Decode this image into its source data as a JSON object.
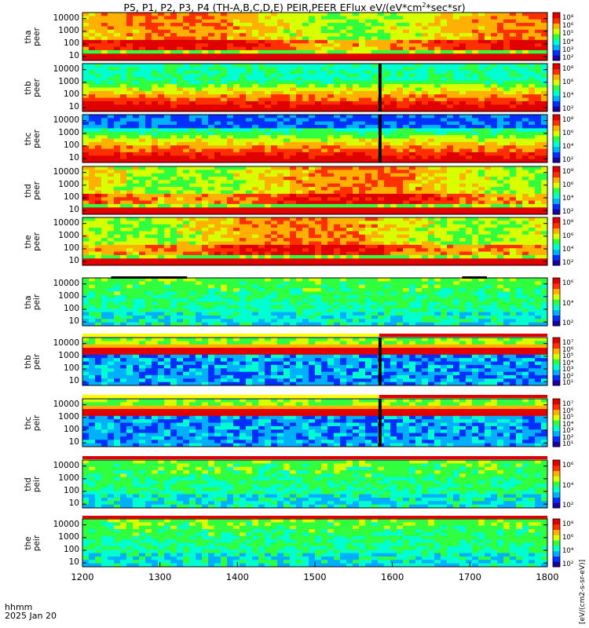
{
  "chart_data": {
    "type": "heatmap",
    "title": "P5, P1, P2, P3, P4 (TH-A,B,C,D,E) PEIR,PEER EFlux eV/(eV*cm",
    "title_sup": "2",
    "title_end": "*sec*sr)",
    "x_ticks": [
      "1200",
      "1300",
      "1400",
      "1500",
      "1600",
      "1700",
      "1800"
    ],
    "x_range": [
      1200,
      1800
    ],
    "y_ticks": [
      "10",
      "100",
      "1000",
      "10000"
    ],
    "y_range": [
      5,
      30000
    ],
    "y_scale": "log",
    "footer": [
      "hhmm",
      "2025 Jan 20"
    ],
    "colorbar_label": "[eV/(cm2-s-sr-eV)]",
    "colorbar_label_overlap": "eV/(cm²-s-sr-eV)",
    "panels": [
      {
        "name": "tha peer",
        "label1": "tha",
        "label2": "peer",
        "cb_ticks": [
          "10⁸",
          "10⁶",
          "10⁵",
          "10⁴",
          "10³",
          "10²"
        ],
        "base_mean_log": 6.6,
        "ramp_low": 4.0,
        "floor_level_e": 14,
        "gap_start": null,
        "gap_end": null
      },
      {
        "name": "thb peer",
        "label1": "thb",
        "label2": "peer",
        "cb_ticks": [
          "10⁸",
          "10⁶",
          "10⁴",
          "10²"
        ],
        "base_mean_log": 5.0,
        "ramp_low": 3.0,
        "floor_level_e": 0,
        "gap_start": 1582,
        "gap_end": 1586
      },
      {
        "name": "thc peer",
        "label1": "thc",
        "label2": "peer",
        "cb_ticks": [
          "10⁸",
          "10⁶",
          "10⁴",
          "10²"
        ],
        "base_mean_log": 4.5,
        "ramp_low": 1.5,
        "floor_level_e": 0,
        "gap_start": 1582,
        "gap_end": 1586
      },
      {
        "name": "thd peer",
        "label1": "thd",
        "label2": "peer",
        "cb_ticks": [
          "10⁸",
          "10⁶",
          "10⁴",
          "10²"
        ],
        "base_mean_log": 6.4,
        "ramp_low": 4.0,
        "floor_level_e": 13,
        "gap_start": null,
        "gap_end": null
      },
      {
        "name": "the peer",
        "label1": "the",
        "label2": "peer",
        "cb_ticks": [
          "10⁸",
          "10⁶",
          "10⁴",
          "10²"
        ],
        "base_mean_log": 6.6,
        "ramp_low": 4.0,
        "floor_level_e": 12,
        "gap_start": null,
        "gap_end": null
      },
      {
        "name": "tha peir",
        "label1": "tha",
        "label2": "peir",
        "cb_ticks": [
          "10⁶",
          "10⁴",
          "10²"
        ],
        "base_mean_log": 3.8,
        "ramp_low": 1.5,
        "floor_level_e": 0,
        "gap_start": null,
        "gap_end": null
      },
      {
        "name": "thb peir",
        "label1": "thb",
        "label2": "peir",
        "cb_ticks": [
          "10⁷",
          "10⁶",
          "10⁵",
          "10⁴",
          "10³",
          "10²",
          "10¹"
        ],
        "base_mean_log": 3.5,
        "ramp_low": 1.0,
        "floor_level_e": 0,
        "gap_start": 1582,
        "gap_end": 1586
      },
      {
        "name": "thc peir",
        "label1": "thc",
        "label2": "peir",
        "cb_ticks": [
          "10⁷",
          "10⁶",
          "10⁵",
          "10⁴",
          "10³",
          "10²",
          "10¹"
        ],
        "base_mean_log": 3.4,
        "ramp_low": 1.0,
        "floor_level_e": 0,
        "gap_start": 1582,
        "gap_end": 1586
      },
      {
        "name": "thd peir",
        "label1": "thd",
        "label2": "peir",
        "cb_ticks": [
          "10⁶",
          "10⁴",
          "10²"
        ],
        "base_mean_log": 3.8,
        "ramp_low": 1.5,
        "floor_level_e": 0,
        "gap_start": null,
        "gap_end": null
      },
      {
        "name": "the peir",
        "label1": "the",
        "label2": "peir",
        "cb_ticks": [
          "10⁸",
          "10⁶",
          "10⁴",
          "10²"
        ],
        "base_mean_log": 4.0,
        "ramp_low": 1.5,
        "floor_level_e": 0,
        "gap_start": null,
        "gap_end": null
      }
    ],
    "colors": {
      "c0": "#1a00a0",
      "c1": "#0030ff",
      "c2": "#00b0ff",
      "c3": "#00ffd0",
      "c4": "#30ff40",
      "c5": "#d8ff00",
      "c6": "#ffb000",
      "c7": "#ff3000",
      "c8": "#e00000",
      "flag_red": "#e00000",
      "flag_yellow": "#ffff00"
    }
  }
}
